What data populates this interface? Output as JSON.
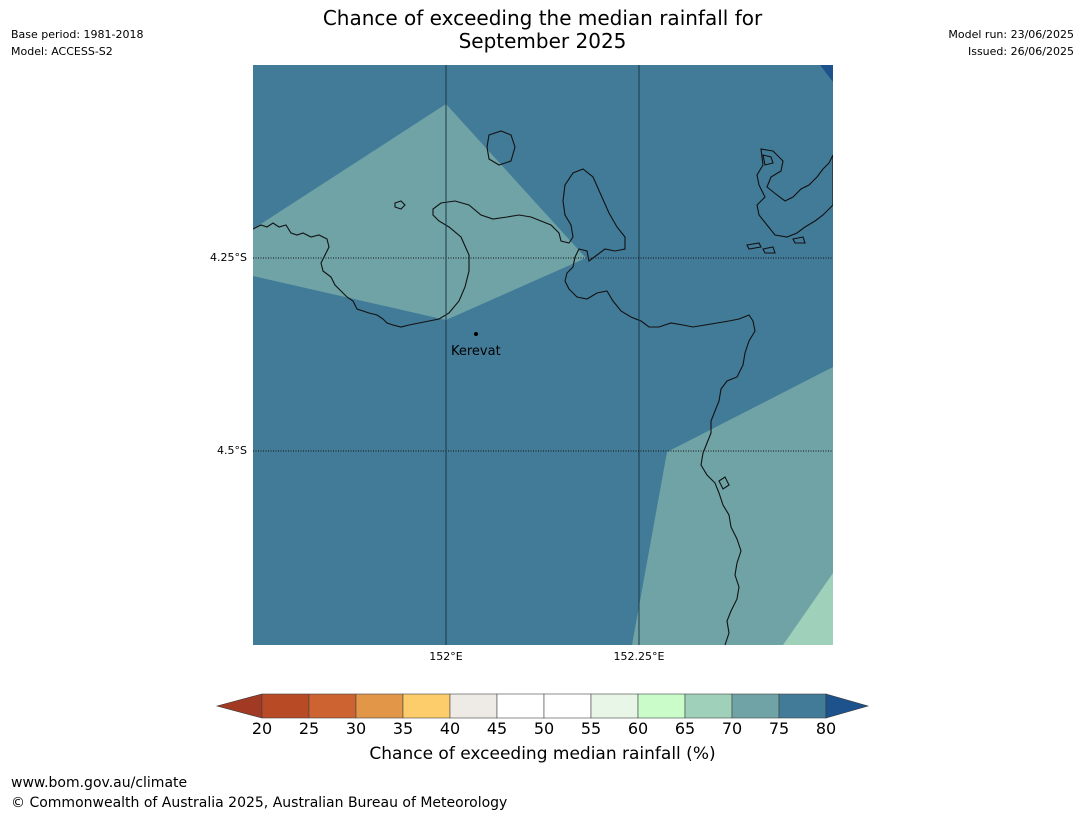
{
  "title": {
    "line1": "Chance of exceeding the median rainfall for",
    "line2": "September 2025"
  },
  "meta_left": {
    "base_period": "Base period: 1981-2018",
    "model": "Model: ACCESS-S2"
  },
  "meta_right": {
    "model_run": "Model run: 23/06/2025",
    "issued": "Issued: 26/06/2025"
  },
  "map": {
    "place_label": "Kerevat",
    "lat_labels": [
      "4.25°S",
      "4.5°S"
    ],
    "lon_labels": [
      "152°E",
      "152.25°E"
    ],
    "colors": {
      "base_70_75": "#427b98",
      "zone_65_70": "#6fa3a6",
      "zone_60_65": "#9fd0b9",
      "zone_above_80": "#1d528c",
      "coastline": "#111111"
    }
  },
  "colorbar": {
    "label": "Chance of exceeding median rainfall (%)",
    "ticks": [
      "20",
      "25",
      "30",
      "35",
      "40",
      "45",
      "50",
      "55",
      "60",
      "65",
      "70",
      "75",
      "80"
    ],
    "colors": [
      "#a23a23",
      "#b84a26",
      "#cd6330",
      "#e29648",
      "#fdcd6b",
      "#eeebe6",
      "#ffffff",
      "#ffffff",
      "#e8f6e8",
      "#c9fcc9",
      "#9fd0b9",
      "#6fa3a6",
      "#427b98",
      "#1d528c"
    ]
  },
  "footer": {
    "url": "www.bom.gov.au/climate",
    "copyright": "© Commonwealth of Australia 2025, Australian Bureau of Meteorology"
  }
}
